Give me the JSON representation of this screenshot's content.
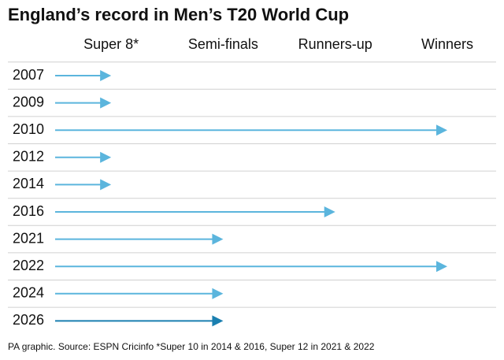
{
  "chart_data": {
    "type": "arrow",
    "title": "England’s record in Men’s T20 World Cup",
    "source": "PA graphic. Source: ESPN Cricinfo *Super 10 in 2014 & 2016, Super 12 in 2021 & 2022",
    "categories": [
      "2007",
      "2009",
      "2010",
      "2012",
      "2014",
      "2016",
      "2021",
      "2022",
      "2024",
      "2026"
    ],
    "values": [
      1,
      1,
      4,
      1,
      1,
      3,
      2,
      4,
      2,
      2
    ],
    "colors": [
      "#5bb5dd",
      "#5bb5dd",
      "#5bb5dd",
      "#5bb5dd",
      "#5bb5dd",
      "#5bb5dd",
      "#5bb5dd",
      "#5bb5dd",
      "#5bb5dd",
      "#1a7fb0"
    ],
    "xlim": [
      0.5,
      4
    ],
    "xticks": [
      {
        "value": 1,
        "label": "Super 8*"
      },
      {
        "value": 2,
        "label": "Semi-finals"
      },
      {
        "value": 3,
        "label": "Runners-up"
      },
      {
        "value": 4,
        "label": "Winners"
      }
    ]
  }
}
